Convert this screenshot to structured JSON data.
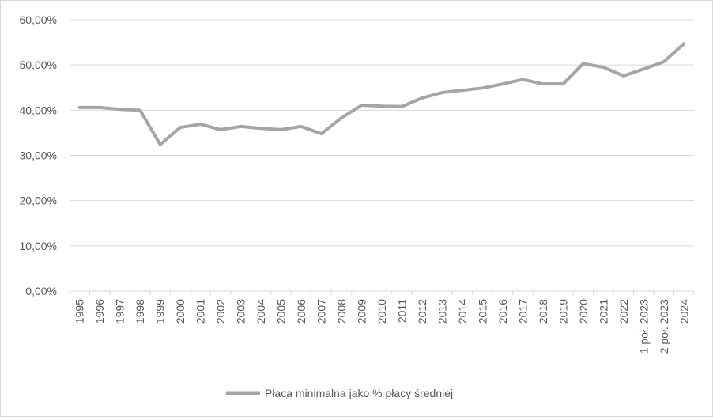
{
  "chart_data": {
    "type": "line",
    "title": "",
    "xlabel": "",
    "ylabel": "",
    "ylim": [
      0,
      60
    ],
    "y_ticks": [
      0,
      10,
      20,
      30,
      40,
      50,
      60
    ],
    "y_tick_labels": [
      "0,00%",
      "10,00%",
      "20,00%",
      "30,00%",
      "40,00%",
      "50,00%",
      "60,00%"
    ],
    "grid": true,
    "legend": "bottom",
    "categories": [
      "1995",
      "1996",
      "1997",
      "1998",
      "1999",
      "2000",
      "2001",
      "2002",
      "2003",
      "2004",
      "2005",
      "2006",
      "2007",
      "2008",
      "2009",
      "2010",
      "2011",
      "2012",
      "2013",
      "2014",
      "2015",
      "2016",
      "2017",
      "2018",
      "2019",
      "2020",
      "2021",
      "2022",
      "1 poł. 2023",
      "2 poł. 2023",
      "2024"
    ],
    "series": [
      {
        "name": "Płaca minimalna jako % płacy średniej",
        "color": "#a5a5a5",
        "values": [
          40.6,
          40.6,
          40.2,
          40.0,
          32.4,
          36.2,
          36.9,
          35.7,
          36.4,
          36.0,
          35.7,
          36.4,
          34.8,
          38.3,
          41.1,
          40.9,
          40.8,
          42.7,
          43.9,
          44.4,
          44.9,
          45.8,
          46.8,
          45.8,
          45.8,
          50.3,
          49.5,
          47.6,
          49.1,
          50.7,
          54.7
        ]
      }
    ]
  }
}
